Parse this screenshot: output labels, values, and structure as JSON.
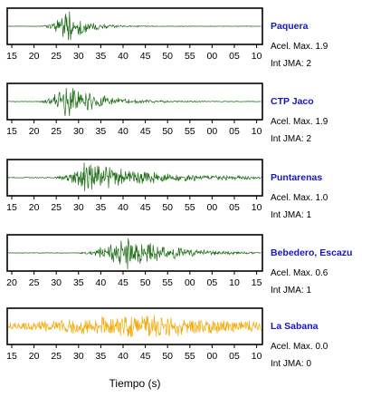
{
  "chart_data": {
    "type": "line",
    "xlabel": "Tiempo (s)",
    "panels": [
      {
        "station": "Paquera",
        "accel_label": "Acel. Max.",
        "accel_max": "1.9",
        "int_label": "Int JMA:",
        "int_jma": "2",
        "trace_color": "#1a6b12",
        "tick_labels": [
          "15",
          "20",
          "25",
          "30",
          "35",
          "40",
          "45",
          "50",
          "55",
          "00",
          "05",
          "10"
        ],
        "signal": {
          "start": 21.5,
          "peak": 27.5,
          "peak_amp": 1.0,
          "decay": 4.0,
          "noise": 0.015
        }
      },
      {
        "station": "CTP Jaco",
        "accel_label": "Acel. Max.",
        "accel_max": "1.9",
        "int_label": "Int JMA:",
        "int_jma": "2",
        "trace_color": "#1a6b12",
        "tick_labels": [
          "15",
          "20",
          "25",
          "30",
          "35",
          "40",
          "45",
          "50",
          "55",
          "00",
          "05",
          "10"
        ],
        "signal": {
          "start": 21.0,
          "peak": 27.5,
          "peak_amp": 1.0,
          "decay": 7.0,
          "noise": 0.02
        }
      },
      {
        "station": "Puntarenas",
        "accel_label": "Acel. Max.",
        "accel_max": "1.0",
        "int_label": "Int JMA:",
        "int_jma": "1",
        "trace_color": "#1a6b12",
        "tick_labels": [
          "15",
          "20",
          "25",
          "30",
          "35",
          "40",
          "45",
          "50",
          "55",
          "00",
          "05",
          "10"
        ],
        "signal": {
          "start": 24.5,
          "peak": 31.5,
          "peak_amp": 0.9,
          "decay": 14.0,
          "noise": 0.03
        }
      },
      {
        "station": "Bebedero, Escazu",
        "accel_label": "Acel. Max.",
        "accel_max": "0.6",
        "int_label": "Int JMA:",
        "int_jma": "1",
        "trace_color": "#1a6b12",
        "tick_labels": [
          "20",
          "25",
          "30",
          "35",
          "40",
          "45",
          "50",
          "55",
          "00",
          "05",
          "10",
          "15"
        ],
        "signal": {
          "start": 29.5,
          "peak": 41.0,
          "peak_amp": 1.0,
          "decay": 9.0,
          "noise": 0.015
        }
      },
      {
        "station": "La Sabana",
        "accel_label": "Acel. Max.",
        "accel_max": "0.0",
        "int_label": "Int JMA:",
        "int_jma": "0",
        "trace_color": "#f5a800",
        "tick_labels": [
          "15",
          "20",
          "25",
          "30",
          "35",
          "40",
          "45",
          "50",
          "55",
          "00",
          "05",
          "10"
        ],
        "signal": {
          "start": 13.0,
          "peak": 44.0,
          "peak_amp": 0.8,
          "decay": 14.0,
          "noise": 0.22
        }
      }
    ]
  }
}
